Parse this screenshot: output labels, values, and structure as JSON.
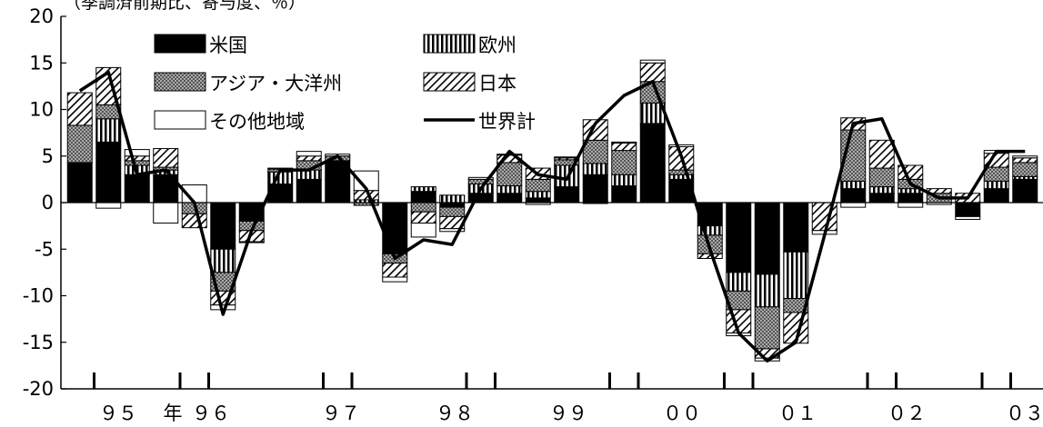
{
  "chart_data": {
    "type": "bar",
    "subtype": "stacked-bar-with-line",
    "unit_note": "（季調済前期比、寄与度、％）",
    "ylim": [
      -20,
      20
    ],
    "yticks": [
      20,
      15,
      10,
      5,
      0,
      -5,
      -10,
      -15,
      -20
    ],
    "year_labels": [
      "９５",
      "年",
      "９６",
      "９７",
      "９８",
      "９９",
      "００",
      "０１",
      "０２",
      "０３"
    ],
    "legend_position": "top-left (inside plot)",
    "series": [
      {
        "name": "米国",
        "pattern": "solid-black",
        "values": [
          4.3,
          6.5,
          3.0,
          3.0,
          0.0,
          -5.0,
          -2.0,
          2.0,
          2.5,
          4.5,
          0.0,
          -5.5,
          1.2,
          -0.5,
          1.0,
          1.0,
          0.5,
          1.7,
          3.0,
          1.8,
          8.5,
          2.5,
          -2.5,
          -7.5,
          -7.7,
          -5.3,
          0.0,
          1.5,
          1.0,
          1.0,
          0.0,
          -1.5,
          1.5,
          2.5
        ]
      },
      {
        "name": "欧州",
        "pattern": "vertical-stripes",
        "values": [
          0.0,
          2.5,
          1.0,
          0.5,
          0.0,
          -2.5,
          0.0,
          1.3,
          1.0,
          0.0,
          0.3,
          0.0,
          0.5,
          0.8,
          1.0,
          0.8,
          0.7,
          2.3,
          1.2,
          1.2,
          2.2,
          0.5,
          -1.0,
          -2.0,
          -3.5,
          -5.0,
          0.0,
          0.8,
          0.7,
          0.5,
          0.0,
          0.0,
          0.8,
          0.3
        ]
      },
      {
        "name": "アジア・大洋州",
        "pattern": "crosshatch",
        "values": [
          4.0,
          1.5,
          0.5,
          0.3,
          -1.2,
          -2.0,
          -1.0,
          0.3,
          1.0,
          0.5,
          -0.3,
          -1.0,
          -1.0,
          -1.0,
          0.5,
          2.5,
          1.3,
          0.6,
          2.5,
          2.6,
          2.3,
          0.5,
          -2.0,
          -2.0,
          -4.5,
          -1.5,
          0.0,
          5.5,
          2.0,
          1.0,
          1.0,
          0.0,
          1.5,
          1.5
        ]
      },
      {
        "name": "日本",
        "pattern": "diagonal-hatch",
        "values": [
          3.5,
          4.0,
          0.5,
          2.0,
          -1.5,
          -1.5,
          -1.2,
          0.0,
          0.5,
          0.0,
          1.0,
          -1.5,
          -1.2,
          -1.3,
          0.0,
          0.8,
          1.2,
          0.2,
          2.2,
          0.8,
          2.0,
          2.5,
          -0.5,
          -2.5,
          -1.0,
          -3.3,
          -3.0,
          1.3,
          3.0,
          1.5,
          0.5,
          1.0,
          1.5,
          0.5
        ]
      },
      {
        "name": "その他地域",
        "pattern": "white",
        "values": [
          0.0,
          -0.6,
          0.7,
          -2.2,
          1.9,
          -0.5,
          -0.1,
          0.1,
          0.5,
          0.2,
          2.1,
          -0.5,
          -1.5,
          -0.3,
          0.2,
          0.1,
          -0.2,
          0.1,
          -0.1,
          0.1,
          0.3,
          0.2,
          0.0,
          -0.3,
          -0.3,
          0.0,
          -0.4,
          -0.5,
          0.0,
          -0.5,
          -0.2,
          -0.3,
          0.3,
          0.2
        ]
      },
      {
        "name": "世界計",
        "type": "line",
        "values": [
          12.0,
          14.0,
          3.0,
          3.5,
          0.0,
          -12.0,
          -3.0,
          3.5,
          3.5,
          5.0,
          1.5,
          -6.0,
          -4.0,
          -4.5,
          1.5,
          5.5,
          3.0,
          2.5,
          8.5,
          11.5,
          13.0,
          5.0,
          -5.0,
          -14.0,
          -17.0,
          -15.0,
          -3.5,
          8.5,
          9.0,
          2.0,
          0.5,
          0.5,
          5.5,
          5.5
        ]
      }
    ]
  }
}
